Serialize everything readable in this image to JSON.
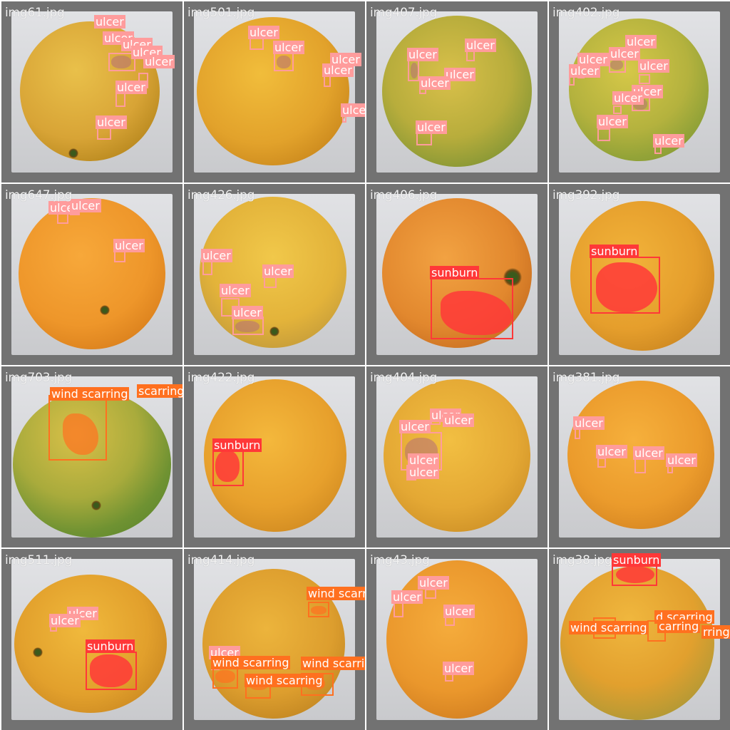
{
  "tiles": [
    {
      "filename": "img61.jpg",
      "labels": [
        "ulcer",
        "ulcer",
        "ulcer",
        "ulcer",
        "ulcer",
        "ulcer",
        "ulcer"
      ]
    },
    {
      "filename": "img501.jpg",
      "labels": [
        "ulcer",
        "ulcer",
        "ulcer",
        "ulcer",
        "ulcer"
      ]
    },
    {
      "filename": "img407.jpg",
      "labels": [
        "ulcer",
        "ulcer",
        "ulcer",
        "ulcer",
        "ulcer"
      ]
    },
    {
      "filename": "img402.jpg",
      "labels": [
        "ulcer",
        "ulcer",
        "ulcer",
        "ulcer",
        "ulcer",
        "ulcer",
        "ulcer",
        "ulcer",
        "ulcer"
      ]
    },
    {
      "filename": "img647.jpg",
      "labels": [
        "ulcer",
        "ulcer",
        "ulcer"
      ]
    },
    {
      "filename": "img426.jpg",
      "labels": [
        "ulcer",
        "ulcer",
        "ulcer",
        "ulcer"
      ]
    },
    {
      "filename": "img406.jpg",
      "labels": [
        "sunburn"
      ]
    },
    {
      "filename": "img392.jpg",
      "labels": [
        "sunburn"
      ]
    },
    {
      "filename": "img703.jpg",
      "labels": [
        "wind scarring",
        "scarring"
      ]
    },
    {
      "filename": "img422.jpg",
      "labels": [
        "sunburn"
      ]
    },
    {
      "filename": "img404.jpg",
      "labels": [
        "ulcer",
        "ulcer",
        "ulcer",
        "ulcer",
        "ulcer"
      ]
    },
    {
      "filename": "img381.jpg",
      "labels": [
        "ulcer",
        "ulcer",
        "ulcer",
        "ulcer"
      ]
    },
    {
      "filename": "img511.jpg",
      "labels": [
        "ulcer",
        "ulcer",
        "sunburn"
      ]
    },
    {
      "filename": "img414.jpg",
      "labels": [
        "wind scarring",
        "ulcer",
        "wind scarring",
        "wind scarring",
        "wind scarring"
      ]
    },
    {
      "filename": "img43.jpg",
      "labels": [
        "ulcer",
        "ulcer",
        "ulcer",
        "ulcer"
      ]
    },
    {
      "filename": "img38.jpg",
      "labels": [
        "sunburn",
        "d scarring",
        "wind scarring",
        "carring",
        "rring"
      ]
    }
  ],
  "colors": {
    "ulcer": "#ff9c9c",
    "sunburn": "#ff3838",
    "wind_scarring": "#ff701f",
    "tile_border": "#727272",
    "photo_background": "#d8d9dc"
  }
}
